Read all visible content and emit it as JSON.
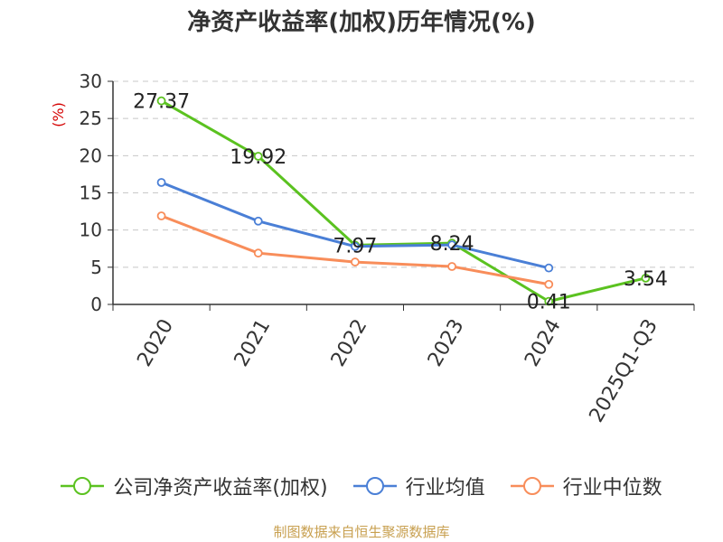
{
  "chart_data": {
    "type": "line",
    "title": "净资产收益率(加权)历年情况(%)",
    "ylabel": "(%)",
    "xlabel": "",
    "categories": [
      "2020",
      "2021",
      "2022",
      "2023",
      "2024",
      "2025Q1-Q3"
    ],
    "ylim": [
      0,
      30
    ],
    "yticks": [
      0,
      5,
      10,
      15,
      20,
      25,
      30
    ],
    "grid": true,
    "legend_position": "bottom",
    "series": [
      {
        "name": "公司净资产收益率(加权)",
        "color": "#5bc220",
        "values": [
          27.37,
          19.92,
          7.97,
          8.24,
          0.41,
          3.54
        ],
        "labels": [
          "27.37",
          "19.92",
          "7.97",
          "8.24",
          "0.41",
          "3.54"
        ]
      },
      {
        "name": "行业均值",
        "color": "#4a7fd6",
        "values": [
          16.4,
          11.2,
          7.8,
          8.0,
          4.9,
          null
        ]
      },
      {
        "name": "行业中位数",
        "color": "#f88d5a",
        "values": [
          11.9,
          6.9,
          5.7,
          5.1,
          2.7,
          null
        ]
      }
    ]
  },
  "footer": {
    "source": "制图数据来自恒生聚源数据库"
  }
}
